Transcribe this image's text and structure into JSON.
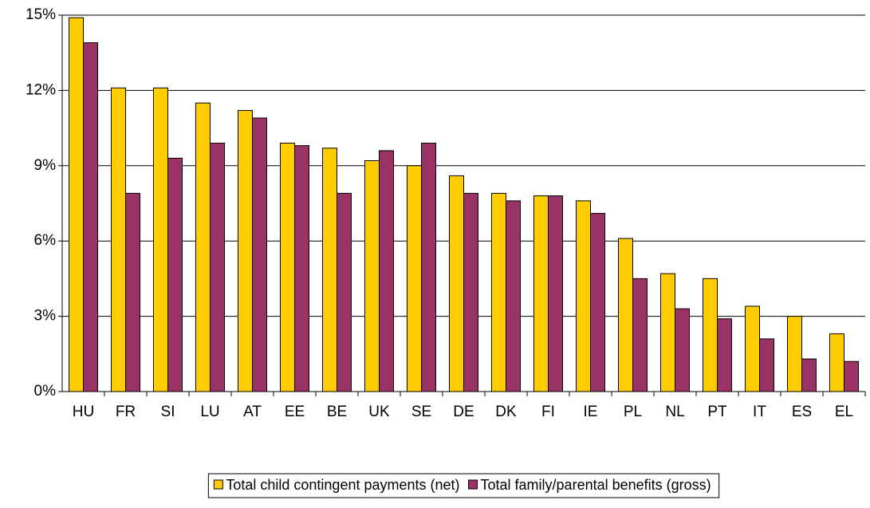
{
  "chart_data": {
    "type": "bar",
    "categories": [
      "HU",
      "FR",
      "SI",
      "LU",
      "AT",
      "EE",
      "BE",
      "UK",
      "SE",
      "DE",
      "DK",
      "FI",
      "IE",
      "PL",
      "NL",
      "PT",
      "IT",
      "ES",
      "EL"
    ],
    "series": [
      {
        "name": "Total child contingent payments (net)",
        "color": "#ffcc00",
        "values": [
          14.9,
          12.1,
          12.1,
          11.5,
          11.2,
          9.9,
          9.7,
          9.2,
          9.0,
          8.6,
          7.9,
          7.8,
          7.6,
          6.1,
          4.7,
          4.5,
          3.4,
          3.0,
          2.3
        ]
      },
      {
        "name": "Total family/parental benefits (gross)",
        "color": "#993366",
        "values": [
          13.9,
          7.9,
          9.3,
          9.9,
          10.9,
          9.8,
          7.9,
          9.6,
          9.9,
          7.9,
          7.6,
          7.8,
          7.1,
          4.5,
          3.3,
          2.9,
          2.1,
          1.3,
          1.2
        ]
      }
    ],
    "ylim": [
      0,
      15
    ],
    "yticks": [
      {
        "value": 0,
        "label": "0%"
      },
      {
        "value": 3,
        "label": "3%"
      },
      {
        "value": 6,
        "label": "6%"
      },
      {
        "value": 9,
        "label": "9%"
      },
      {
        "value": 12,
        "label": "12%"
      },
      {
        "value": 15,
        "label": "15%"
      }
    ],
    "grid": true
  }
}
